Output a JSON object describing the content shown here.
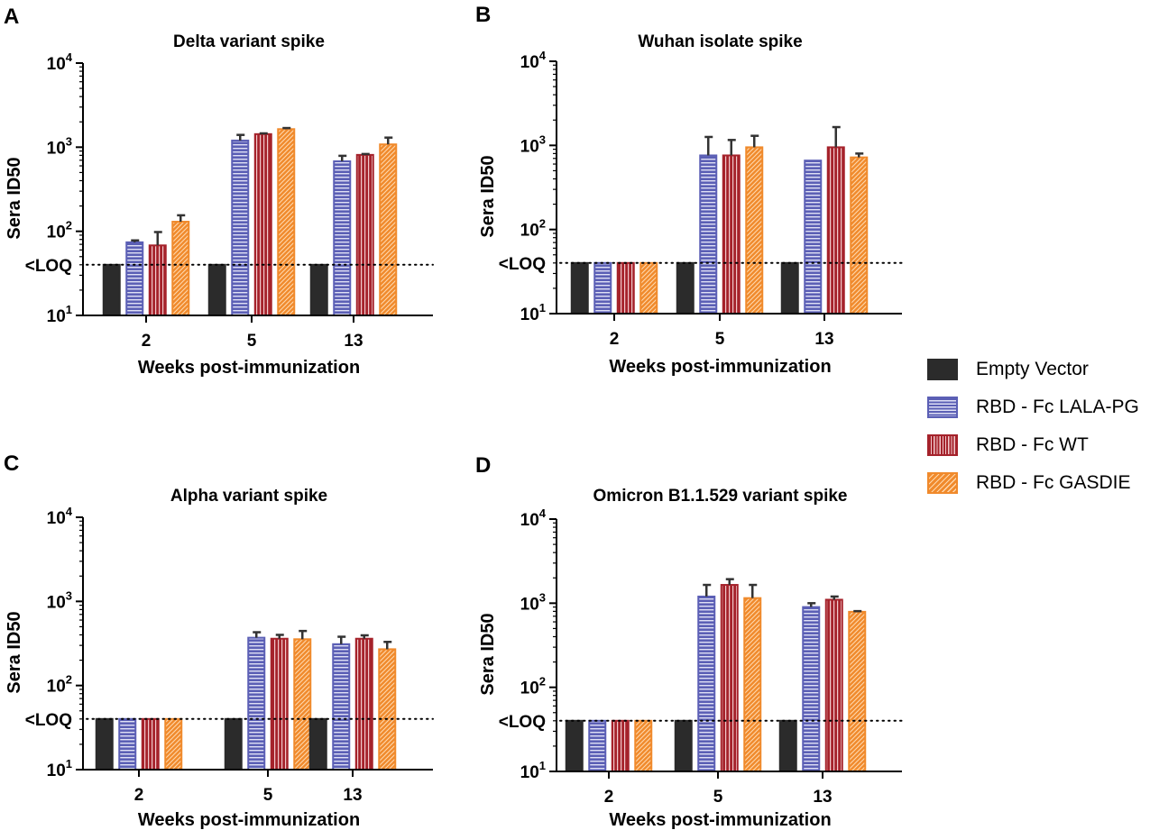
{
  "colors": {
    "empty": "#2b2b2b",
    "lala": "#5b5fb5",
    "wt": "#a5222b",
    "gasdie": "#f08a2c",
    "error_bar": "#333333"
  },
  "legend": [
    {
      "label": "Empty Vector",
      "key": "empty",
      "color": "#2b2b2b"
    },
    {
      "label": "RBD - Fc LALA-PG",
      "key": "lala",
      "color": "#5b5fb5"
    },
    {
      "label": "RBD - Fc WT",
      "key": "wt",
      "color": "#a5222b"
    },
    {
      "label": "RBD - Fc GASDIE",
      "key": "gasdie",
      "color": "#f08a2c"
    }
  ],
  "chart_data": [
    {
      "panel": "A",
      "type": "bar",
      "title": "Delta variant spike",
      "xlabel": "Weeks post-immunization",
      "ylabel": "Sera ID50",
      "yscale": "log",
      "ylim": [
        10,
        10000
      ],
      "loq": 40,
      "loq_label": "<LOQ",
      "yticks": [
        {
          "value": 10,
          "base": "10",
          "exp": "1"
        },
        {
          "value": 100,
          "base": "10",
          "exp": "2"
        },
        {
          "value": 1000,
          "base": "10",
          "exp": "3"
        },
        {
          "value": 10000,
          "base": "10",
          "exp": "4"
        }
      ],
      "categories": [
        "2",
        "5",
        "13"
      ],
      "series": [
        {
          "name": "Empty Vector",
          "key": "empty",
          "values": [
            40,
            40,
            40
          ],
          "errors": [
            0,
            0,
            0
          ]
        },
        {
          "name": "RBD - Fc LALA-PG",
          "key": "lala",
          "values": [
            74,
            1200,
            680
          ],
          "errors": [
            4,
            200,
            110
          ]
        },
        {
          "name": "RBD - Fc WT",
          "key": "wt",
          "values": [
            68,
            1430,
            810
          ],
          "errors": [
            30,
            30,
            20
          ]
        },
        {
          "name": "RBD - Fc GASDIE",
          "key": "gasdie",
          "values": [
            130,
            1640,
            1080
          ],
          "errors": [
            25,
            50,
            220
          ]
        }
      ]
    },
    {
      "panel": "B",
      "type": "bar",
      "title": "Wuhan isolate spike",
      "xlabel": "Weeks post-immunization",
      "ylabel": "Sera ID50",
      "yscale": "log",
      "ylim": [
        10,
        10000
      ],
      "loq": 40,
      "loq_label": "<LOQ",
      "yticks": [
        {
          "value": 10,
          "base": "10",
          "exp": "1"
        },
        {
          "value": 100,
          "base": "10",
          "exp": "2"
        },
        {
          "value": 1000,
          "base": "10",
          "exp": "3"
        },
        {
          "value": 10000,
          "base": "10",
          "exp": "4"
        }
      ],
      "categories": [
        "2",
        "5",
        "13"
      ],
      "series": [
        {
          "name": "Empty Vector",
          "key": "empty",
          "values": [
            40,
            40,
            40
          ],
          "errors": [
            0,
            0,
            0
          ]
        },
        {
          "name": "RBD - Fc LALA-PG",
          "key": "lala",
          "values": [
            40,
            760,
            660
          ],
          "errors": [
            0,
            500,
            0
          ]
        },
        {
          "name": "RBD - Fc WT",
          "key": "wt",
          "values": [
            40,
            760,
            950
          ],
          "errors": [
            0,
            400,
            700
          ]
        },
        {
          "name": "RBD - Fc GASDIE",
          "key": "gasdie",
          "values": [
            40,
            950,
            720
          ],
          "errors": [
            0,
            350,
            80
          ]
        }
      ]
    },
    {
      "panel": "C",
      "type": "bar",
      "title": "Alpha variant spike",
      "xlabel": "Weeks post-immunization",
      "ylabel": "Sera ID50",
      "yscale": "log",
      "ylim": [
        10,
        10000
      ],
      "loq": 40,
      "loq_label": "<LOQ",
      "yticks": [
        {
          "value": 10,
          "base": "10",
          "exp": "1"
        },
        {
          "value": 100,
          "base": "10",
          "exp": "2"
        },
        {
          "value": 1000,
          "base": "10",
          "exp": "3"
        },
        {
          "value": 10000,
          "base": "10",
          "exp": "4"
        }
      ],
      "categories": [
        "2",
        "5",
        "13"
      ],
      "series": [
        {
          "name": "Empty Vector",
          "key": "empty",
          "values": [
            40,
            40,
            40
          ],
          "errors": [
            0,
            0,
            0
          ]
        },
        {
          "name": "RBD - Fc LALA-PG",
          "key": "lala",
          "values": [
            40,
            370,
            310
          ],
          "errors": [
            0,
            60,
            70
          ]
        },
        {
          "name": "RBD - Fc WT",
          "key": "wt",
          "values": [
            40,
            360,
            360
          ],
          "errors": [
            0,
            40,
            35
          ]
        },
        {
          "name": "RBD - Fc GASDIE",
          "key": "gasdie",
          "values": [
            40,
            355,
            270
          ],
          "errors": [
            0,
            90,
            60
          ]
        }
      ]
    },
    {
      "panel": "D",
      "type": "bar",
      "title": "Omicron B1.1.529 variant spike",
      "xlabel": "Weeks post-immunization",
      "ylabel": "Sera ID50",
      "yscale": "log",
      "ylim": [
        10,
        10000
      ],
      "loq": 40,
      "loq_label": "<LOQ",
      "yticks": [
        {
          "value": 10,
          "base": "10",
          "exp": "1"
        },
        {
          "value": 100,
          "base": "10",
          "exp": "2"
        },
        {
          "value": 1000,
          "base": "10",
          "exp": "3"
        },
        {
          "value": 10000,
          "base": "10",
          "exp": "4"
        }
      ],
      "categories": [
        "2",
        "5",
        "13"
      ],
      "series": [
        {
          "name": "Empty Vector",
          "key": "empty",
          "values": [
            40,
            40,
            40
          ],
          "errors": [
            0,
            0,
            0
          ]
        },
        {
          "name": "RBD - Fc LALA-PG",
          "key": "lala",
          "values": [
            40,
            1200,
            900
          ],
          "errors": [
            0,
            450,
            100
          ]
        },
        {
          "name": "RBD - Fc WT",
          "key": "wt",
          "values": [
            40,
            1650,
            1100
          ],
          "errors": [
            0,
            280,
            100
          ]
        },
        {
          "name": "RBD - Fc GASDIE",
          "key": "gasdie",
          "values": [
            40,
            1150,
            790
          ],
          "errors": [
            0,
            500,
            15
          ]
        }
      ]
    }
  ]
}
